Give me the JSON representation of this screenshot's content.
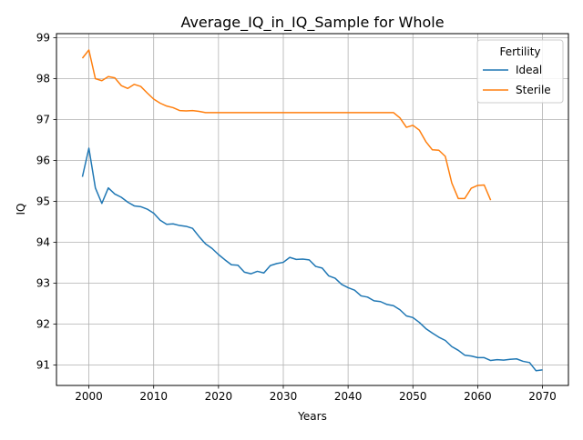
{
  "chart_data": {
    "type": "line",
    "title": "Average_IQ_in_IQ_Sample for Whole",
    "xlabel": "Years",
    "ylabel": "IQ",
    "xlim": [
      1995,
      2074
    ],
    "ylim": [
      90.5,
      99.1
    ],
    "xticks": [
      2000,
      2010,
      2020,
      2030,
      2040,
      2050,
      2060,
      2070
    ],
    "yticks": [
      91,
      92,
      93,
      94,
      95,
      96,
      97,
      98,
      99
    ],
    "grid": true,
    "legend": {
      "title": "Fertility",
      "position": "top-right"
    },
    "series": [
      {
        "name": "Ideal",
        "color": "#1f77b4",
        "x": [
          1999,
          2000,
          2001,
          2002,
          2003,
          2004,
          2005,
          2006,
          2007,
          2008,
          2009,
          2010,
          2011,
          2012,
          2013,
          2014,
          2015,
          2016,
          2017,
          2018,
          2019,
          2020,
          2021,
          2022,
          2023,
          2024,
          2025,
          2026,
          2027,
          2028,
          2029,
          2030,
          2031,
          2032,
          2033,
          2034,
          2035,
          2036,
          2037,
          2038,
          2039,
          2040,
          2041,
          2042,
          2043,
          2044,
          2045,
          2046,
          2047,
          2048,
          2049,
          2050,
          2051,
          2052,
          2053,
          2054,
          2055,
          2056,
          2057,
          2058,
          2059,
          2060,
          2061,
          2062,
          2063,
          2064,
          2065,
          2066,
          2067,
          2068,
          2069,
          2070
        ],
        "y": [
          95.6,
          96.3,
          95.33,
          94.95,
          95.33,
          95.18,
          95.1,
          94.98,
          94.89,
          94.87,
          94.81,
          94.71,
          94.54,
          94.44,
          94.45,
          94.41,
          94.39,
          94.34,
          94.14,
          93.96,
          93.85,
          93.7,
          93.57,
          93.45,
          93.44,
          93.27,
          93.23,
          93.29,
          93.25,
          93.43,
          93.48,
          93.51,
          93.63,
          93.58,
          93.59,
          93.57,
          93.41,
          93.37,
          93.18,
          93.12,
          92.97,
          92.89,
          92.83,
          92.69,
          92.66,
          92.57,
          92.55,
          92.48,
          92.45,
          92.35,
          92.2,
          92.16,
          92.04,
          91.89,
          91.78,
          91.68,
          91.6,
          91.45,
          91.36,
          91.24,
          91.22,
          91.18,
          91.18,
          91.11,
          91.13,
          91.12,
          91.14,
          91.15,
          91.09,
          91.06,
          90.86,
          90.88
        ]
      },
      {
        "name": "Sterile",
        "color": "#ff7f0e",
        "x": [
          1999,
          2000,
          2001,
          2002,
          2003,
          2004,
          2005,
          2006,
          2007,
          2008,
          2009,
          2010,
          2011,
          2012,
          2013,
          2014,
          2015,
          2016,
          2017,
          2018,
          2019,
          2020,
          2025,
          2030,
          2035,
          2040,
          2045,
          2047,
          2048,
          2049,
          2050,
          2051,
          2052,
          2053,
          2054,
          2055,
          2056,
          2057,
          2058,
          2059,
          2060,
          2061,
          2062
        ],
        "y": [
          98.5,
          98.7,
          98.0,
          97.95,
          98.05,
          98.02,
          97.83,
          97.76,
          97.86,
          97.81,
          97.65,
          97.5,
          97.4,
          97.33,
          97.29,
          97.22,
          97.21,
          97.22,
          97.2,
          97.17,
          97.17,
          97.17,
          97.17,
          97.17,
          97.17,
          97.17,
          97.17,
          97.17,
          97.04,
          96.81,
          96.86,
          96.74,
          96.46,
          96.26,
          96.25,
          96.1,
          95.45,
          95.07,
          95.07,
          95.32,
          95.39,
          95.4,
          95.03
        ]
      }
    ]
  }
}
